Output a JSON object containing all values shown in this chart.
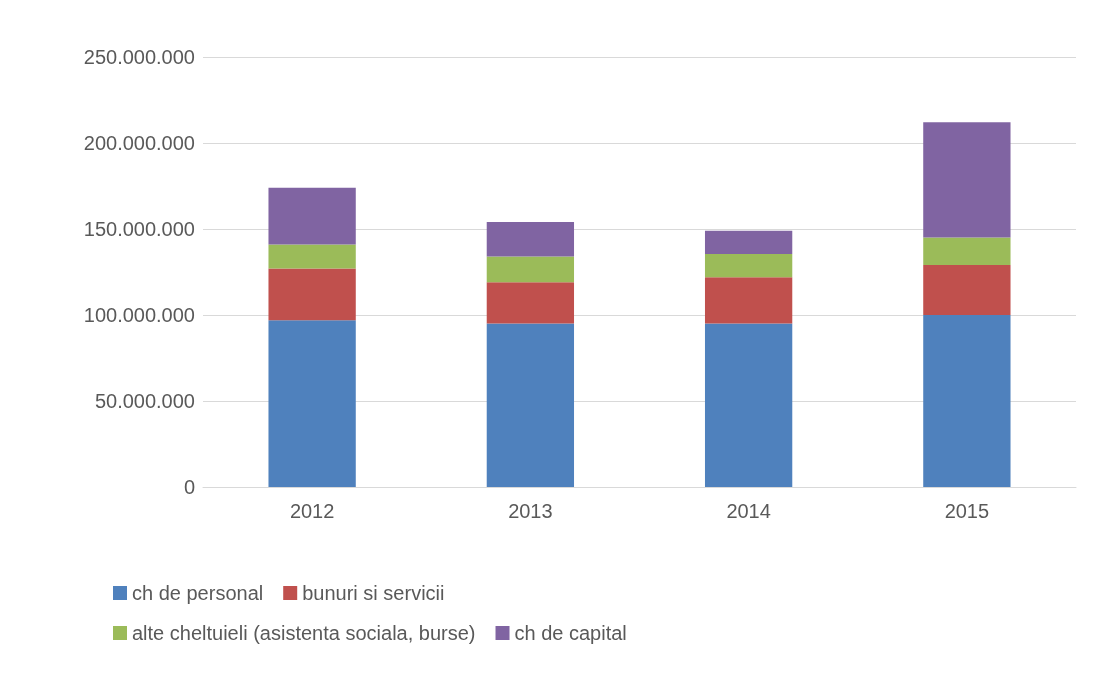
{
  "chart_data": {
    "type": "bar",
    "stacked": true,
    "categories": [
      "2012",
      "2013",
      "2014",
      "2015"
    ],
    "series": [
      {
        "name": "ch de personal",
        "color": "#4f81bd",
        "values": [
          97000000,
          95000000,
          95000000,
          100000000
        ]
      },
      {
        "name": "bunuri si servicii",
        "color": "#c0504d",
        "values": [
          30000000,
          24000000,
          27000000,
          29000000
        ]
      },
      {
        "name": "alte cheltuieli (asistenta sociala, burse)",
        "color": "#9bbb59",
        "values": [
          14000000,
          15000000,
          13500000,
          16000000
        ]
      },
      {
        "name": "ch de capital",
        "color": "#8064a2",
        "values": [
          33000000,
          20000000,
          13500000,
          67000000
        ]
      }
    ],
    "ylim": [
      0,
      250000000
    ],
    "yticks": [
      {
        "value": 0,
        "label": "0"
      },
      {
        "value": 50000000,
        "label": "50.000.000"
      },
      {
        "value": 100000000,
        "label": "100.000.000"
      },
      {
        "value": 150000000,
        "label": "150.000.000"
      },
      {
        "value": 200000000,
        "label": "200.000.000"
      },
      {
        "value": 250000000,
        "label": "250.000.000"
      }
    ],
    "grid": "y",
    "legend": "bottom"
  }
}
